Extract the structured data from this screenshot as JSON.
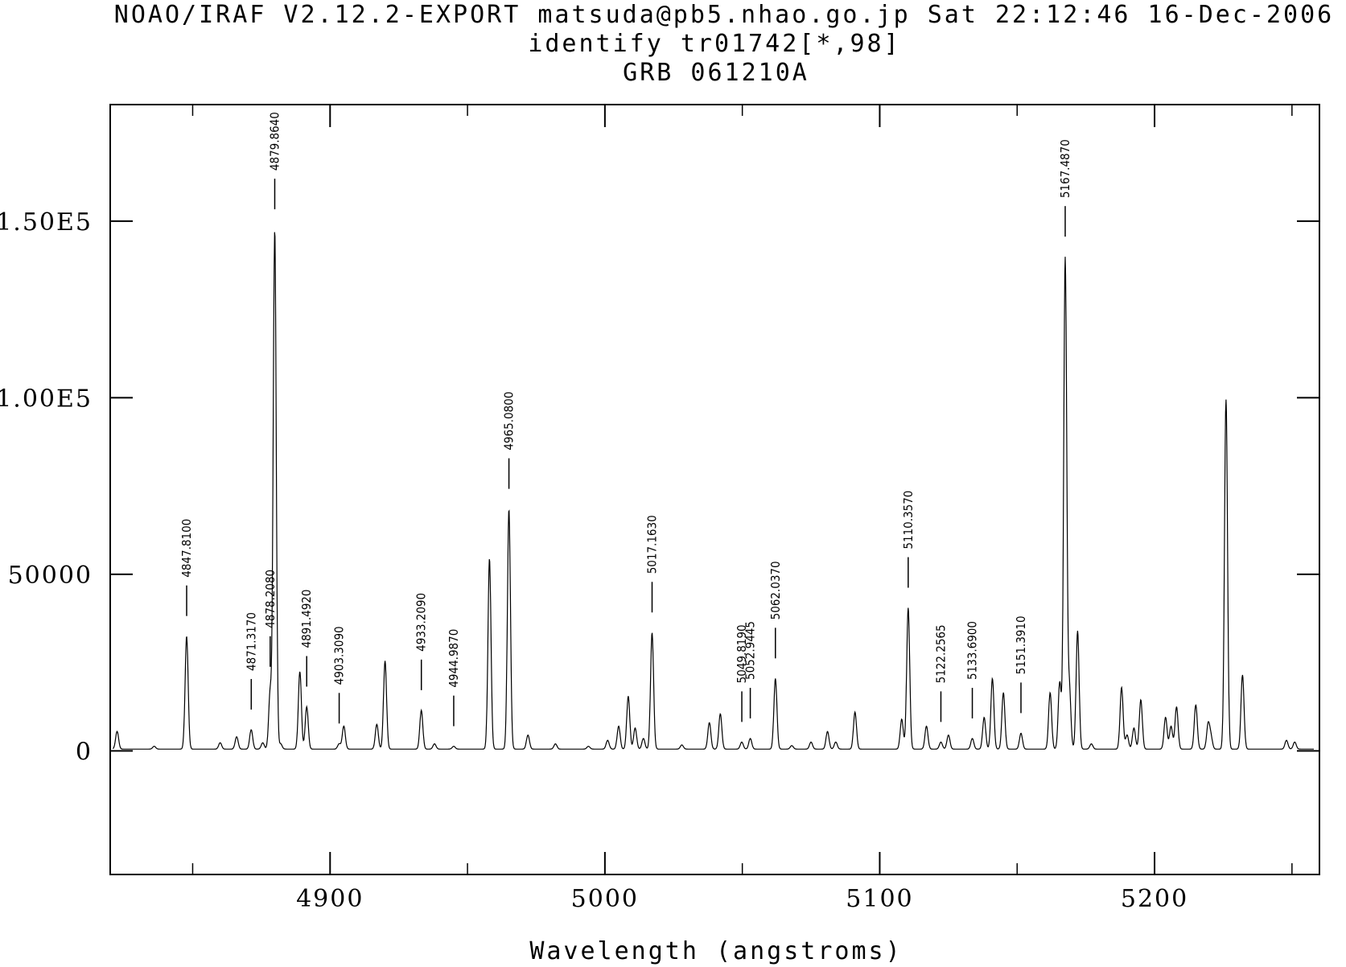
{
  "header": {
    "line1": "NOAO/IRAF V2.12.2-EXPORT matsuda@pb5.nhao.go.jp Sat 22:12:46 16-Dec-2006",
    "line2": "identify tr01742[*,98]",
    "line3": "GRB 061210A"
  },
  "chart_data": {
    "type": "line",
    "title": "GRB 061210A",
    "xlabel": "Wavelength (angstroms)",
    "ylabel": "",
    "xlim": [
      4820,
      5260
    ],
    "ylim": [
      -35000,
      183000
    ],
    "x_ticks": [
      4900,
      5000,
      5100,
      5200
    ],
    "x_tick_labels": [
      "4900",
      "5000",
      "5100",
      "5200"
    ],
    "y_ticks": [
      0,
      50000,
      100000,
      150000
    ],
    "y_tick_labels": [
      "0",
      "50000",
      "1.00E5",
      "1.50E5"
    ],
    "grid": false,
    "baseline": 500,
    "peaks": [
      [
        4822.5,
        5000
      ],
      [
        4836,
        800
      ],
      [
        4847.8,
        32000
      ],
      [
        4860,
        1800
      ],
      [
        4866,
        3500
      ],
      [
        4871.3,
        5500
      ],
      [
        4875.5,
        1800
      ],
      [
        4878.2,
        16000
      ],
      [
        4879.86,
        147000
      ],
      [
        4882,
        1500
      ],
      [
        4889,
        22000
      ],
      [
        4891.5,
        12000
      ],
      [
        4903.3,
        1500
      ],
      [
        4905,
        6500
      ],
      [
        4917,
        7000
      ],
      [
        4920,
        25000
      ],
      [
        4933.2,
        11000
      ],
      [
        4938,
        1500
      ],
      [
        4944.99,
        800
      ],
      [
        4958,
        54000
      ],
      [
        4965.08,
        68000
      ],
      [
        4972,
        4000
      ],
      [
        4982,
        1500
      ],
      [
        4994,
        800
      ],
      [
        5001,
        2500
      ],
      [
        5005,
        6500
      ],
      [
        5008.5,
        15000
      ],
      [
        5011,
        6000
      ],
      [
        5014,
        3000
      ],
      [
        5017.16,
        33000
      ],
      [
        5028,
        1200
      ],
      [
        5038,
        7500
      ],
      [
        5042,
        10000
      ],
      [
        5049.8,
        2000
      ],
      [
        5052.9,
        3000
      ],
      [
        5062.04,
        20000
      ],
      [
        5068,
        1000
      ],
      [
        5075,
        2000
      ],
      [
        5081,
        5000
      ],
      [
        5084,
        2000
      ],
      [
        5091,
        10500
      ],
      [
        5108,
        8500
      ],
      [
        5110.36,
        40000
      ],
      [
        5117,
        6500
      ],
      [
        5122.26,
        2000
      ],
      [
        5125,
        4000
      ],
      [
        5133.69,
        3000
      ],
      [
        5138,
        9000
      ],
      [
        5141,
        20000
      ],
      [
        5145,
        16000
      ],
      [
        5151.39,
        4500
      ],
      [
        5162,
        16000
      ],
      [
        5165.5,
        19000
      ],
      [
        5167.49,
        139000
      ],
      [
        5169,
        17000
      ],
      [
        5172,
        33500
      ],
      [
        5177,
        1500
      ],
      [
        5188,
        17500
      ],
      [
        5190,
        4000
      ],
      [
        5192.5,
        6000
      ],
      [
        5195,
        14000
      ],
      [
        5204,
        9000
      ],
      [
        5206,
        6500
      ],
      [
        5208,
        12000
      ],
      [
        5215,
        12500
      ],
      [
        5219.5,
        7000
      ],
      [
        5220.5,
        3500
      ],
      [
        5226,
        99000
      ],
      [
        5232,
        21000
      ],
      [
        5248,
        2500
      ],
      [
        5251,
        2000
      ]
    ],
    "line_ids": [
      {
        "wavelength": 4847.81,
        "label": "4847.8100"
      },
      {
        "wavelength": 4871.317,
        "label": "4871.3170"
      },
      {
        "wavelength": 4878.208,
        "label": "4878.2080"
      },
      {
        "wavelength": 4879.864,
        "label": "4879.8640"
      },
      {
        "wavelength": 4891.492,
        "label": "4891.4920"
      },
      {
        "wavelength": 4903.309,
        "label": "4903.3090"
      },
      {
        "wavelength": 4933.209,
        "label": "4933.2090"
      },
      {
        "wavelength": 4944.987,
        "label": "4944.9870"
      },
      {
        "wavelength": 4965.08,
        "label": "4965.0800"
      },
      {
        "wavelength": 5017.163,
        "label": "5017.1630"
      },
      {
        "wavelength": 5049.819,
        "label": "5049.8190"
      },
      {
        "wavelength": 5052.9,
        "label": "5052.9445"
      },
      {
        "wavelength": 5062.037,
        "label": "5062.0370"
      },
      {
        "wavelength": 5110.357,
        "label": "5110.3570"
      },
      {
        "wavelength": 5122.2565,
        "label": "5122.2565"
      },
      {
        "wavelength": 5133.69,
        "label": "5133.6900"
      },
      {
        "wavelength": 5151.391,
        "label": "5151.3910"
      },
      {
        "wavelength": 5167.487,
        "label": "5167.4870"
      }
    ]
  }
}
